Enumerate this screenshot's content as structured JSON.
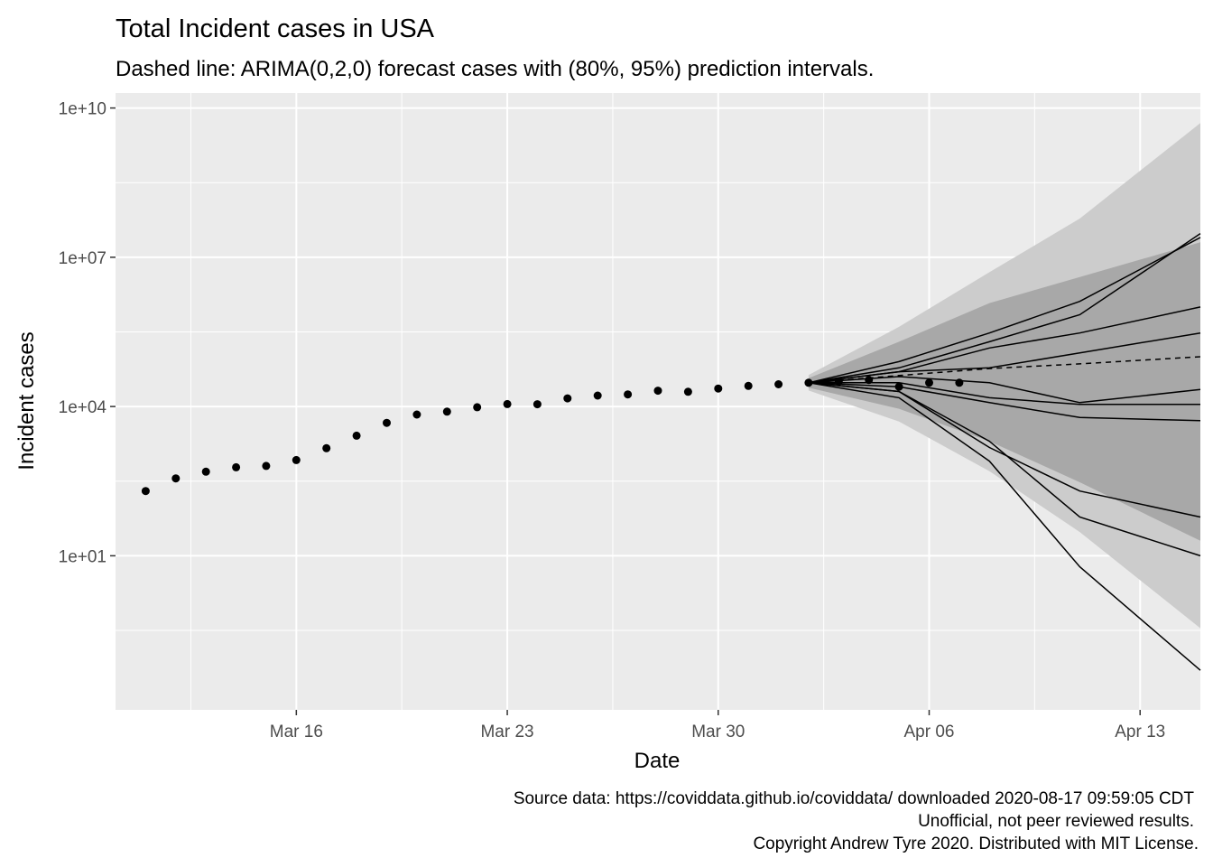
{
  "chart_data": {
    "type": "scatter",
    "title": "Total Incident cases in USA",
    "subtitle": "Dashed line: ARIMA(0,2,0) forecast cases with (80%, 95%) prediction intervals.",
    "xlabel": "Date",
    "ylabel": "Incident cases",
    "y_scale": "log10",
    "ylim": [
      0.008,
      20000000000
    ],
    "xlim": [
      "2020-03-10",
      "2020-04-15"
    ],
    "x_ticks": [
      {
        "date": "2020-03-16",
        "label": "Mar 16"
      },
      {
        "date": "2020-03-23",
        "label": "Mar 23"
      },
      {
        "date": "2020-03-30",
        "label": "Mar 30"
      },
      {
        "date": "2020-04-06",
        "label": "Apr 06"
      },
      {
        "date": "2020-04-13",
        "label": "Apr 13"
      }
    ],
    "y_ticks": [
      {
        "value": 10,
        "label": "1e+01"
      },
      {
        "value": 10000,
        "label": "1e+04"
      },
      {
        "value": 10000000,
        "label": "1e+07"
      },
      {
        "value": 10000000000,
        "label": "1e+10"
      }
    ],
    "grid": true,
    "legend": "none",
    "colors": {
      "panel": "#ebebeb",
      "grid": "#ffffff",
      "band95": "#cccccc",
      "band80": "#a8a8a8",
      "points": "#000000"
    },
    "observed": [
      {
        "date": "2020-03-11",
        "value": 200
      },
      {
        "date": "2020-03-12",
        "value": 360
      },
      {
        "date": "2020-03-13",
        "value": 490
      },
      {
        "date": "2020-03-14",
        "value": 600
      },
      {
        "date": "2020-03-15",
        "value": 640
      },
      {
        "date": "2020-03-16",
        "value": 840
      },
      {
        "date": "2020-03-17",
        "value": 1450
      },
      {
        "date": "2020-03-18",
        "value": 2600
      },
      {
        "date": "2020-03-19",
        "value": 4700
      },
      {
        "date": "2020-03-20",
        "value": 6900
      },
      {
        "date": "2020-03-21",
        "value": 7900
      },
      {
        "date": "2020-03-22",
        "value": 9700
      },
      {
        "date": "2020-03-23",
        "value": 11200
      },
      {
        "date": "2020-03-24",
        "value": 11100
      },
      {
        "date": "2020-03-25",
        "value": 14600
      },
      {
        "date": "2020-03-26",
        "value": 16600
      },
      {
        "date": "2020-03-27",
        "value": 17500
      },
      {
        "date": "2020-03-28",
        "value": 20800
      },
      {
        "date": "2020-03-29",
        "value": 19800
      },
      {
        "date": "2020-03-30",
        "value": 23000
      },
      {
        "date": "2020-03-31",
        "value": 26000
      },
      {
        "date": "2020-04-01",
        "value": 28000
      },
      {
        "date": "2020-04-02",
        "value": 30000
      },
      {
        "date": "2020-04-03",
        "value": 32000
      },
      {
        "date": "2020-04-04",
        "value": 34000
      },
      {
        "date": "2020-04-05",
        "value": 25000
      },
      {
        "date": "2020-04-06",
        "value": 30000
      },
      {
        "date": "2020-04-07",
        "value": 30000
      }
    ],
    "forecast": {
      "method": "ARIMA(0,2,0)",
      "dates": [
        "2020-04-02",
        "2020-04-05",
        "2020-04-08",
        "2020-04-11",
        "2020-04-15"
      ],
      "mean": [
        30000,
        42000,
        58000,
        72000,
        100000
      ],
      "lo80": [
        24000,
        9000,
        2000,
        300,
        20
      ],
      "hi80": [
        37000,
        200000,
        1200000,
        4000000,
        20000000
      ],
      "lo95": [
        21000,
        5000,
        500,
        30,
        0.35
      ],
      "hi95": [
        43000,
        400000,
        5000000,
        60000000,
        5000000000
      ]
    },
    "simulations": [
      {
        "dates": [
          "2020-04-02",
          "2020-04-05",
          "2020-04-08",
          "2020-04-11",
          "2020-04-15"
        ],
        "values": [
          30000,
          80000,
          300000,
          1300000,
          25000000
        ]
      },
      {
        "dates": [
          "2020-04-02",
          "2020-04-05",
          "2020-04-08",
          "2020-04-11",
          "2020-04-15"
        ],
        "values": [
          30000,
          60000,
          200000,
          700000,
          30000000
        ]
      },
      {
        "dates": [
          "2020-04-02",
          "2020-04-05",
          "2020-04-08",
          "2020-04-11",
          "2020-04-15"
        ],
        "values": [
          30000,
          50000,
          150000,
          300000,
          1000000
        ]
      },
      {
        "dates": [
          "2020-04-02",
          "2020-04-05",
          "2020-04-08",
          "2020-04-11",
          "2020-04-15"
        ],
        "values": [
          30000,
          50000,
          60000,
          120000,
          300000
        ]
      },
      {
        "dates": [
          "2020-04-02",
          "2020-04-05",
          "2020-04-08",
          "2020-04-11",
          "2020-04-15"
        ],
        "values": [
          30000,
          40000,
          30000,
          12000,
          22000
        ]
      },
      {
        "dates": [
          "2020-04-02",
          "2020-04-05",
          "2020-04-08",
          "2020-04-11",
          "2020-04-15"
        ],
        "values": [
          30000,
          30000,
          15000,
          11000,
          11000
        ]
      },
      {
        "dates": [
          "2020-04-02",
          "2020-04-05",
          "2020-04-08",
          "2020-04-11",
          "2020-04-15"
        ],
        "values": [
          30000,
          25000,
          12000,
          6000,
          5200
        ]
      },
      {
        "dates": [
          "2020-04-02",
          "2020-04-05",
          "2020-04-08",
          "2020-04-11",
          "2020-04-15"
        ],
        "values": [
          30000,
          20000,
          1500,
          200,
          60
        ]
      },
      {
        "dates": [
          "2020-04-02",
          "2020-04-05",
          "2020-04-08",
          "2020-04-11",
          "2020-04-15"
        ],
        "values": [
          30000,
          20000,
          2000,
          60,
          10
        ]
      },
      {
        "dates": [
          "2020-04-02",
          "2020-04-05",
          "2020-04-08",
          "2020-04-11",
          "2020-04-15"
        ],
        "values": [
          30000,
          15000,
          800,
          6,
          0.05
        ]
      }
    ]
  },
  "caption": {
    "line1": "Source data: https://coviddata.github.io/coviddata/ downloaded  2020-08-17 09:59:05 CDT",
    "line2": "Unofficial, not peer reviewed results.",
    "line3": "Copyright Andrew Tyre 2020. Distributed with MIT License."
  }
}
